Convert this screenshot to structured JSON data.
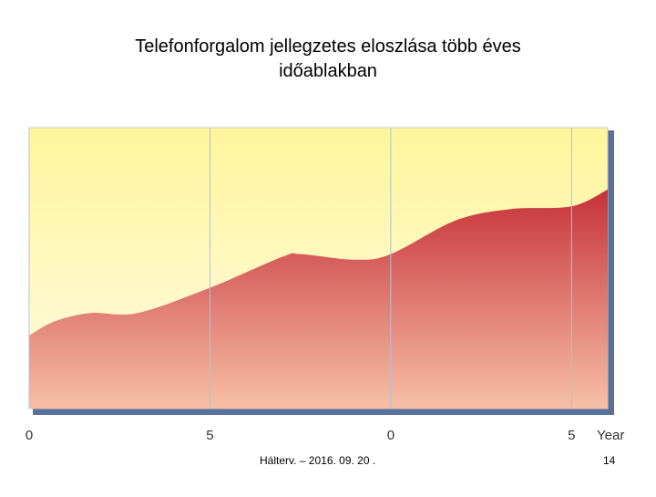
{
  "title": "Telefonforgalom jellegzetes eloszlása több éves időablakban",
  "chart_data": {
    "type": "area",
    "x": [
      0,
      0.7,
      1.7,
      3,
      5,
      7,
      7.5,
      9,
      10,
      11.8,
      13.3,
      15,
      16
    ],
    "values": [
      26,
      31,
      34,
      34,
      43,
      54,
      55,
      53,
      55,
      67,
      71,
      72,
      78
    ],
    "xlim": [
      0,
      16
    ],
    "ylim": [
      0,
      100
    ],
    "xticks": [
      0,
      5,
      {
        "value": 10,
        "label": "0"
      },
      {
        "value": 15,
        "label": "5"
      }
    ],
    "xlabel": "Year",
    "grid": true
  },
  "footer": {
    "text": "Hálterv. – 2016. 09. 20 .",
    "page": "14"
  }
}
